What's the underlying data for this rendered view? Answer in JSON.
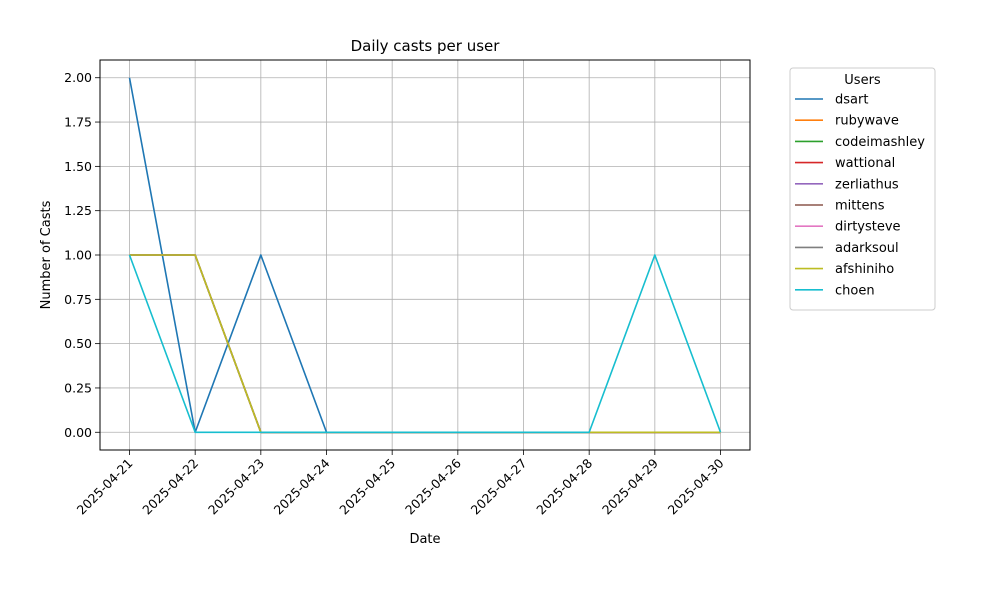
{
  "chart_data": {
    "type": "line",
    "title": "Daily casts per user",
    "xlabel": "Date",
    "ylabel": "Number of Casts",
    "categories": [
      "2025-04-21",
      "2025-04-22",
      "2025-04-23",
      "2025-04-24",
      "2025-04-25",
      "2025-04-26",
      "2025-04-27",
      "2025-04-28",
      "2025-04-29",
      "2025-04-30"
    ],
    "ylim": [
      -0.1,
      2.1
    ],
    "yticks": [
      "0.00",
      "0.25",
      "0.50",
      "0.75",
      "1.00",
      "1.25",
      "1.50",
      "1.75",
      "2.00"
    ],
    "grid": true,
    "legend": {
      "title": "Users",
      "placement": "outside-right"
    },
    "series": [
      {
        "name": "dsart",
        "color": "#1f77b4",
        "values": [
          2,
          0,
          1,
          0,
          0,
          0,
          0,
          0,
          0,
          0
        ]
      },
      {
        "name": "rubywave",
        "color": "#ff7f0e",
        "values": [
          1,
          1,
          0,
          0,
          0,
          0,
          0,
          0,
          0,
          0
        ]
      },
      {
        "name": "codeimashley",
        "color": "#2ca02c",
        "values": [
          1,
          1,
          0,
          0,
          0,
          0,
          0,
          0,
          0,
          0
        ]
      },
      {
        "name": "wattional",
        "color": "#d62728",
        "values": [
          1,
          1,
          0,
          0,
          0,
          0,
          0,
          0,
          0,
          0
        ]
      },
      {
        "name": "zerliathus",
        "color": "#9467bd",
        "values": [
          1,
          1,
          0,
          0,
          0,
          0,
          0,
          0,
          0,
          0
        ]
      },
      {
        "name": "mittens",
        "color": "#8c564b",
        "values": [
          1,
          1,
          0,
          0,
          0,
          0,
          0,
          0,
          0,
          0
        ]
      },
      {
        "name": "dirtysteve",
        "color": "#e377c2",
        "values": [
          1,
          1,
          0,
          0,
          0,
          0,
          0,
          0,
          0,
          0
        ]
      },
      {
        "name": "adarksoul",
        "color": "#7f7f7f",
        "values": [
          1,
          1,
          0,
          0,
          0,
          0,
          0,
          0,
          0,
          0
        ]
      },
      {
        "name": "afshiniho",
        "color": "#bcbd22",
        "values": [
          1,
          1,
          0,
          0,
          0,
          0,
          0,
          0,
          0,
          0
        ]
      },
      {
        "name": "choen",
        "color": "#17becf",
        "values": [
          1,
          0,
          0,
          0,
          0,
          0,
          0,
          0,
          1,
          0
        ]
      }
    ]
  }
}
